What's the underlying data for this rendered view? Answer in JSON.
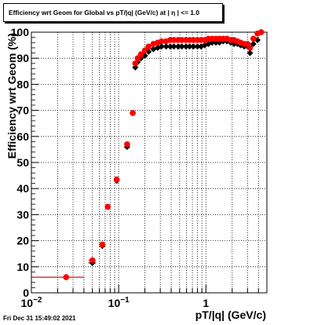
{
  "title": "Efficiency wrt Geom for Global vs pT/|q| (GeV/c) at |  η | <= 1.0",
  "footer": "Fri Dec 31 15:49:02 2021",
  "chart_data": {
    "type": "scatter",
    "title": "Efficiency wrt Geom for Global vs pT/|q| (GeV/c) at |  η | <= 1.0",
    "xlabel": "pT/|q| (GeV/c)",
    "ylabel": "Efficiency wrt Geom (%)",
    "xscale": "log",
    "xlim": [
      0.01,
      5.0
    ],
    "ylim": [
      0,
      100
    ],
    "grid": true,
    "x_tick_labels": [
      "10^-2",
      "10^-1",
      "1"
    ],
    "y_tick_labels": [
      "0",
      "10",
      "20",
      "30",
      "40",
      "50",
      "60",
      "70",
      "80",
      "90",
      "100"
    ],
    "colors": {
      "series_a": "#000000",
      "series_b": "#ff0000"
    },
    "series": [
      {
        "marker": "diamond",
        "x": [
          0.025,
          0.05,
          0.065,
          0.075,
          0.095,
          0.125,
          0.145,
          0.155,
          0.165,
          0.18,
          0.2,
          0.22,
          0.25,
          0.28,
          0.31,
          0.35,
          0.39,
          0.43,
          0.48,
          0.53,
          0.59,
          0.65,
          0.72,
          0.8,
          0.88,
          0.97,
          1.07,
          1.18,
          1.3,
          1.43,
          1.58,
          1.74,
          1.92,
          2.1,
          2.3,
          2.5,
          2.75,
          3.0,
          3.2,
          3.5,
          3.9,
          4.3
        ],
        "y": [
          6,
          11.5,
          18,
          33,
          43,
          56,
          69,
          86.5,
          88.5,
          90,
          91,
          92.5,
          93.5,
          94,
          94.5,
          94.5,
          94.5,
          94.5,
          94.5,
          94.5,
          94.5,
          94.5,
          94.5,
          94.5,
          94.5,
          95,
          95.5,
          96,
          96,
          96,
          96.5,
          96.5,
          96,
          95.5,
          95.5,
          95,
          94.5,
          94.5,
          92,
          95.5,
          97,
          100
        ],
        "xerr": [
          0.015,
          0.005,
          0.003,
          0.003,
          0.006,
          0.006,
          0.004,
          0.003,
          0.003,
          0.004,
          0.005,
          0.006,
          0.007,
          0.008,
          0.009,
          0.01,
          0.011,
          0.012,
          0.013,
          0.015,
          0.017,
          0.018,
          0.02,
          0.022,
          0.025,
          0.027,
          0.03,
          0.033,
          0.036,
          0.04,
          0.044,
          0.049,
          0.054,
          0.06,
          0.065,
          0.07,
          0.08,
          0.09,
          0.1,
          0.11,
          0.12,
          0.13
        ]
      },
      {
        "marker": "circle",
        "x": [
          0.025,
          0.05,
          0.065,
          0.075,
          0.095,
          0.125,
          0.145,
          0.155,
          0.165,
          0.18,
          0.2,
          0.22,
          0.25,
          0.28,
          0.31,
          0.35,
          0.39,
          0.43,
          0.48,
          0.53,
          0.59,
          0.65,
          0.72,
          0.8,
          0.88,
          0.97,
          1.07,
          1.18,
          1.3,
          1.43,
          1.58,
          1.74,
          1.92,
          2.1,
          2.3,
          2.5,
          2.75,
          3.0,
          3.2,
          3.5,
          3.9,
          4.3
        ],
        "y": [
          6,
          12.5,
          18.5,
          33,
          43.5,
          57,
          69,
          88,
          90,
          91.5,
          93,
          94.5,
          95.5,
          96,
          96.5,
          96.5,
          97,
          97,
          97,
          97,
          97,
          97,
          97,
          97,
          97,
          97,
          97.5,
          97.5,
          97.5,
          97.5,
          97.5,
          97.5,
          97,
          97,
          96.5,
          96,
          95.5,
          95.5,
          94,
          97.5,
          99.5,
          100
        ]
      }
    ]
  }
}
